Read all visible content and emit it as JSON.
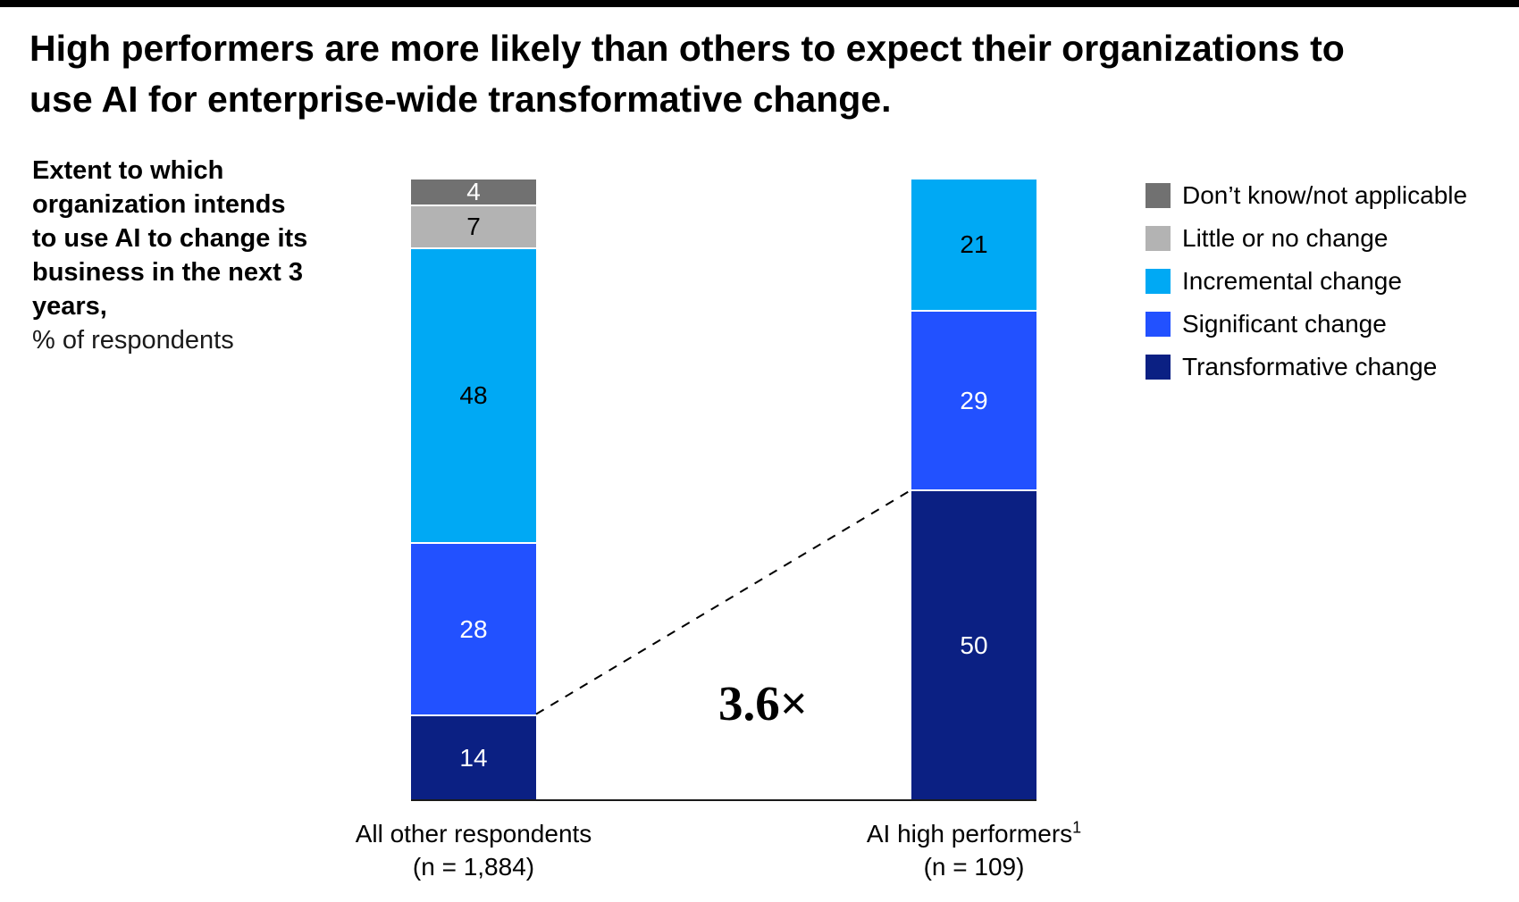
{
  "title": "High performers are more likely than others to expect their organizations to use AI for enterprise-wide transformative change.",
  "axis_note": {
    "bold": "Extent to which organization intends to use AI to change its business in the next 3 years,",
    "regular": "% of respondents"
  },
  "annotation": "3.6×",
  "colors": {
    "dont_know": "#717171",
    "little_none": "#B3B3B3",
    "incremental": "#00A9F4",
    "significant": "#2251FF",
    "transformative": "#0B2083",
    "axis": "#1a1a1a",
    "separator": "#ffffff",
    "top_rule": "#000000"
  },
  "legend": [
    {
      "label": "Don’t know/not applicable",
      "color": "#717171"
    },
    {
      "label": "Little or no change",
      "color": "#B3B3B3"
    },
    {
      "label": "Incremental change",
      "color": "#00A9F4"
    },
    {
      "label": "Significant change",
      "color": "#2251FF"
    },
    {
      "label": "Transformative change",
      "color": "#0B2083"
    }
  ],
  "chart_data": {
    "type": "bar",
    "stacked": true,
    "title": "Extent to which organization intends to use AI to change its business in the next 3 years, % of respondents",
    "ylabel": "% of respondents",
    "grid": false,
    "legend_position": "right",
    "categories": [
      "All other respondents",
      "AI high performers"
    ],
    "category_sups": [
      "",
      "1"
    ],
    "category_subs": [
      "(n = 1,884)",
      "(n = 109)"
    ],
    "series": [
      {
        "name": "Don’t know/not applicable",
        "color": "#717171",
        "label_color": "#ffffff",
        "values": [
          4,
          null
        ]
      },
      {
        "name": "Little or no change",
        "color": "#B3B3B3",
        "label_color": "#000000",
        "values": [
          7,
          null
        ]
      },
      {
        "name": "Incremental change",
        "color": "#00A9F4",
        "label_color": "#000000",
        "values": [
          48,
          21
        ]
      },
      {
        "name": "Significant change",
        "color": "#2251FF",
        "label_color": "#ffffff",
        "values": [
          28,
          29
        ]
      },
      {
        "name": "Transformative change",
        "color": "#0B2083",
        "label_color": "#ffffff",
        "values": [
          14,
          50
        ]
      }
    ],
    "annotation": {
      "text": "3.6×",
      "connects": "Transformative change tops of both bars"
    }
  }
}
